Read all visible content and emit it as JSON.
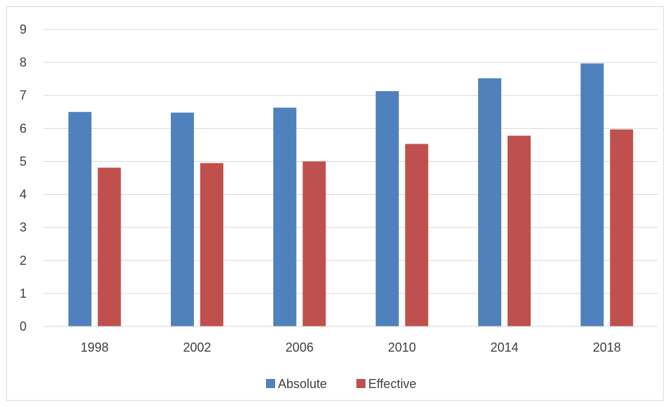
{
  "chart_data": {
    "type": "bar",
    "title": "",
    "xlabel": "",
    "ylabel": "",
    "categories": [
      "1998",
      "2002",
      "2006",
      "2010",
      "2014",
      "2018"
    ],
    "series": [
      {
        "name": "Absolute",
        "color": "#4f81bd",
        "values": [
          6.5,
          6.48,
          6.63,
          7.13,
          7.52,
          7.97
        ]
      },
      {
        "name": "Effective",
        "color": "#c0504d",
        "values": [
          4.81,
          4.95,
          5.0,
          5.53,
          5.78,
          5.97
        ]
      }
    ],
    "ylim": [
      0,
      9
    ],
    "yticks": [
      0,
      1,
      2,
      3,
      4,
      5,
      6,
      7,
      8,
      9
    ],
    "grid": true,
    "gridline_color": "#d9d9d9",
    "legend_position": "bottom"
  }
}
